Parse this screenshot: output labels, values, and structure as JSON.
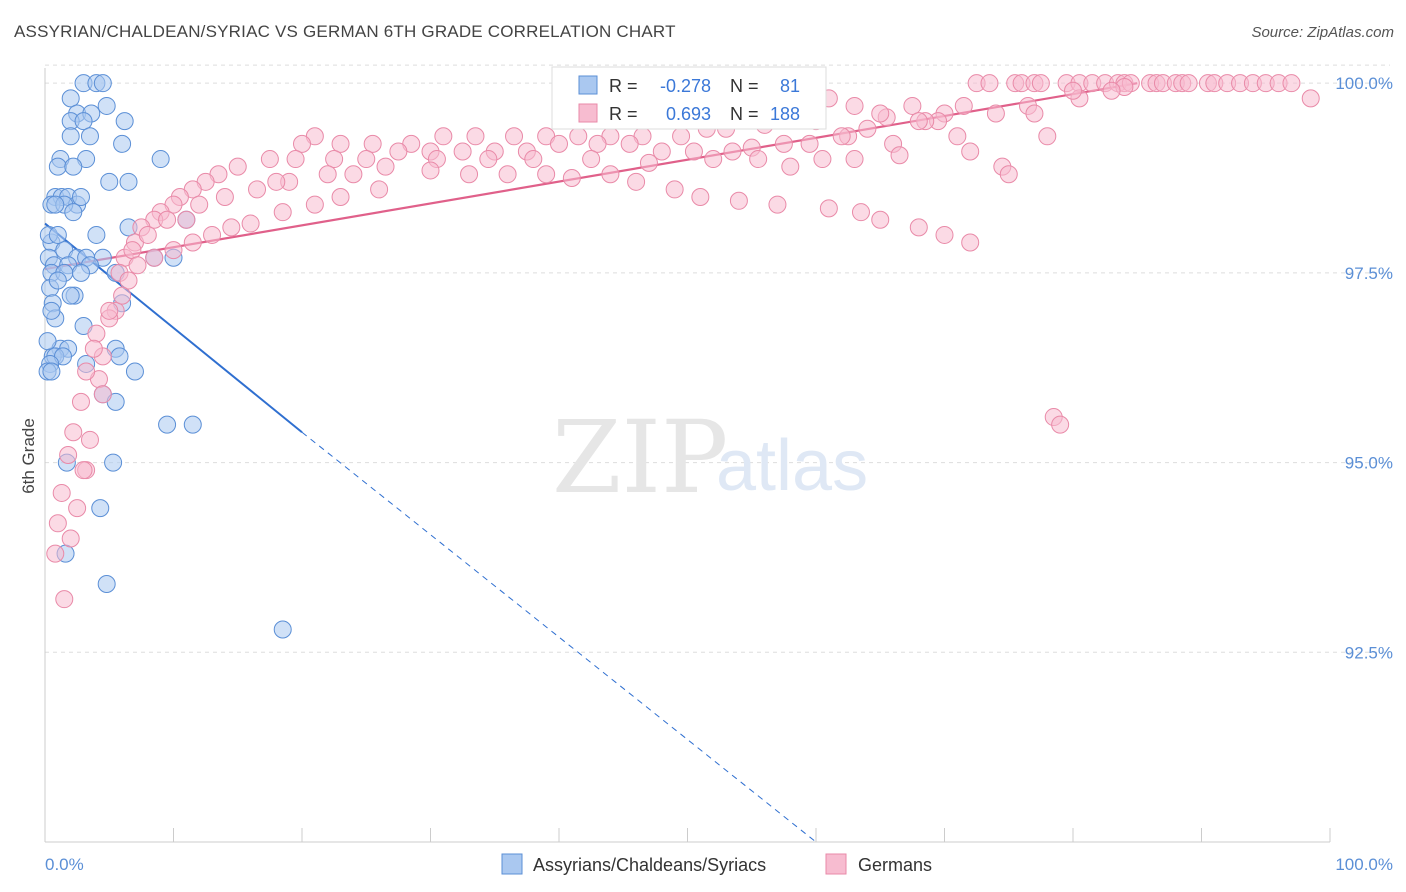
{
  "title": "ASSYRIAN/CHALDEAN/SYRIAC VS GERMAN 6TH GRADE CORRELATION CHART",
  "source": "Source: ZipAtlas.com",
  "watermark": {
    "zip": "ZIP",
    "atlas": "atlas"
  },
  "colors": {
    "blue_fill": "#aac8f0",
    "blue_stroke": "#5b8fd6",
    "blue_line": "#2f6fd0",
    "pink_fill": "#f7bcd0",
    "pink_stroke": "#e98aa8",
    "pink_line": "#e0608a",
    "grid": "#dddddd",
    "tick_text": "#5b8fd6"
  },
  "stats": {
    "r_label": "R =",
    "n_label": "N =",
    "blue": {
      "r": "-0.278",
      "n": "81"
    },
    "pink": {
      "r": "0.693",
      "n": "188"
    }
  },
  "chart_data": {
    "type": "scatter",
    "title": "ASSYRIAN/CHALDEAN/SYRIAC VS GERMAN 6TH GRADE CORRELATION CHART",
    "xlabel": "",
    "ylabel": "6th Grade",
    "xlim": [
      0,
      100
    ],
    "ylim": [
      90.0,
      100.2
    ],
    "x_tick_labels": [
      "0.0%",
      "100.0%"
    ],
    "y_ticks": [
      92.5,
      95.0,
      97.5,
      100.0
    ],
    "y_tick_labels": [
      "92.5%",
      "95.0%",
      "97.5%",
      "100.0%"
    ],
    "grid": true,
    "legend_position": "bottom-center",
    "series": [
      {
        "name": "Assyrians/Chaldeans/Syriacs",
        "color": "#aac8f0",
        "trend": {
          "x": [
            0,
            20
          ],
          "y": [
            98.15,
            95.4
          ],
          "dashed_to": [
            60,
            90.0
          ]
        },
        "points": [
          [
            3,
            100
          ],
          [
            4,
            100
          ],
          [
            4.5,
            100
          ],
          [
            2,
            99.8
          ],
          [
            4.8,
            99.7
          ],
          [
            2.5,
            99.6
          ],
          [
            3.6,
            99.6
          ],
          [
            2,
            99.5
          ],
          [
            3,
            99.5
          ],
          [
            6.2,
            99.5
          ],
          [
            2,
            99.3
          ],
          [
            3.5,
            99.3
          ],
          [
            6,
            99.2
          ],
          [
            1.2,
            99.0
          ],
          [
            3.2,
            99.0
          ],
          [
            9,
            99.0
          ],
          [
            1,
            98.9
          ],
          [
            2.2,
            98.9
          ],
          [
            5,
            98.7
          ],
          [
            6.5,
            98.7
          ],
          [
            0.8,
            98.5
          ],
          [
            1.3,
            98.5
          ],
          [
            1.8,
            98.5
          ],
          [
            2.5,
            98.4
          ],
          [
            0.5,
            98.4
          ],
          [
            1.5,
            98.4
          ],
          [
            2.2,
            98.3
          ],
          [
            0.8,
            98.4
          ],
          [
            11,
            98.2
          ],
          [
            4,
            98.0
          ],
          [
            6.5,
            98.1
          ],
          [
            0.5,
            97.9
          ],
          [
            1.5,
            97.8
          ],
          [
            2.5,
            97.7
          ],
          [
            3.2,
            97.7
          ],
          [
            4.5,
            97.7
          ],
          [
            8.5,
            97.7
          ],
          [
            10,
            97.7
          ],
          [
            0.3,
            97.7
          ],
          [
            0.7,
            97.6
          ],
          [
            1.8,
            97.6
          ],
          [
            3.5,
            97.6
          ],
          [
            0.5,
            97.5
          ],
          [
            1.5,
            97.5
          ],
          [
            2.8,
            97.5
          ],
          [
            5.5,
            97.5
          ],
          [
            0.4,
            97.3
          ],
          [
            2.3,
            97.2
          ],
          [
            0.6,
            97.1
          ],
          [
            2,
            97.2
          ],
          [
            6,
            97.1
          ],
          [
            0.8,
            96.9
          ],
          [
            3,
            96.8
          ],
          [
            1.2,
            96.5
          ],
          [
            1.8,
            96.5
          ],
          [
            5.5,
            96.5
          ],
          [
            0.6,
            96.4
          ],
          [
            0.8,
            96.4
          ],
          [
            5.8,
            96.4
          ],
          [
            1.4,
            96.4
          ],
          [
            0.4,
            96.3
          ],
          [
            0.2,
            96.2
          ],
          [
            3.2,
            96.3
          ],
          [
            7,
            96.2
          ],
          [
            0.5,
            96.2
          ],
          [
            4.5,
            95.9
          ],
          [
            5.5,
            95.8
          ],
          [
            9.5,
            95.5
          ],
          [
            11.5,
            95.5
          ],
          [
            1.7,
            95.0
          ],
          [
            5.3,
            95.0
          ],
          [
            4.3,
            94.4
          ],
          [
            1.6,
            93.8
          ],
          [
            4.8,
            93.4
          ],
          [
            18.5,
            92.8
          ],
          [
            0.2,
            96.6
          ],
          [
            0.5,
            97.0
          ],
          [
            1.0,
            97.4
          ],
          [
            0.3,
            98.0
          ],
          [
            2.8,
            98.5
          ],
          [
            1.0,
            98.0
          ]
        ]
      },
      {
        "name": "Germans",
        "color": "#f7bcd0",
        "trend": {
          "x": [
            0,
            85
          ],
          "y": [
            97.55,
            100.0
          ]
        },
        "points": [
          [
            72.5,
            100
          ],
          [
            73.5,
            100
          ],
          [
            75.5,
            100
          ],
          [
            76,
            100
          ],
          [
            77,
            100
          ],
          [
            77.5,
            100
          ],
          [
            79.5,
            100
          ],
          [
            80.5,
            100
          ],
          [
            81.5,
            100
          ],
          [
            82.5,
            100
          ],
          [
            83.5,
            100
          ],
          [
            84,
            100
          ],
          [
            84.5,
            100
          ],
          [
            86,
            100
          ],
          [
            86.5,
            100
          ],
          [
            87,
            100
          ],
          [
            88,
            100
          ],
          [
            88.5,
            100
          ],
          [
            89,
            100
          ],
          [
            90.5,
            100
          ],
          [
            91,
            100
          ],
          [
            92,
            100
          ],
          [
            93,
            100
          ],
          [
            94,
            100
          ],
          [
            95,
            100
          ],
          [
            96,
            100
          ],
          [
            97,
            100
          ],
          [
            84,
            99.95
          ],
          [
            83,
            99.9
          ],
          [
            80.5,
            99.8
          ],
          [
            98.5,
            99.8
          ],
          [
            76.5,
            99.7
          ],
          [
            67.5,
            99.7
          ],
          [
            70,
            99.6
          ],
          [
            71.5,
            99.7
          ],
          [
            74,
            99.6
          ],
          [
            77,
            99.6
          ],
          [
            69.5,
            99.5
          ],
          [
            65.5,
            99.55
          ],
          [
            68.5,
            99.5
          ],
          [
            60,
            99.5
          ],
          [
            56,
            99.45
          ],
          [
            53,
            99.4
          ],
          [
            51.5,
            99.4
          ],
          [
            49.5,
            99.3
          ],
          [
            46.5,
            99.3
          ],
          [
            44,
            99.3
          ],
          [
            41.5,
            99.3
          ],
          [
            39,
            99.3
          ],
          [
            36.5,
            99.3
          ],
          [
            33.5,
            99.3
          ],
          [
            31,
            99.3
          ],
          [
            28.5,
            99.2
          ],
          [
            25.5,
            99.2
          ],
          [
            23,
            99.2
          ],
          [
            21,
            99.3
          ],
          [
            20,
            99.2
          ],
          [
            64,
            99.4
          ],
          [
            62.5,
            99.3
          ],
          [
            59.5,
            99.2
          ],
          [
            57.5,
            99.2
          ],
          [
            55,
            99.15
          ],
          [
            53.5,
            99.1
          ],
          [
            50.5,
            99.1
          ],
          [
            48,
            99.1
          ],
          [
            45.5,
            99.2
          ],
          [
            43,
            99.2
          ],
          [
            40,
            99.2
          ],
          [
            37.5,
            99.1
          ],
          [
            35,
            99.1
          ],
          [
            32.5,
            99.1
          ],
          [
            30,
            99.1
          ],
          [
            27.5,
            99.1
          ],
          [
            25,
            99.0
          ],
          [
            22.5,
            99.0
          ],
          [
            19.5,
            99.0
          ],
          [
            17.5,
            99.0
          ],
          [
            15,
            98.9
          ],
          [
            13.5,
            98.8
          ],
          [
            12.5,
            98.7
          ],
          [
            11.5,
            98.6
          ],
          [
            10.5,
            98.5
          ],
          [
            10,
            98.4
          ],
          [
            9,
            98.3
          ],
          [
            8.5,
            98.2
          ],
          [
            7.5,
            98.1
          ],
          [
            7,
            97.9
          ],
          [
            6.2,
            97.7
          ],
          [
            5.8,
            97.5
          ],
          [
            5.5,
            97.0
          ],
          [
            5,
            96.9
          ],
          [
            4.5,
            96.4
          ],
          [
            4.2,
            96.1
          ],
          [
            4.5,
            95.9
          ],
          [
            3.5,
            95.3
          ],
          [
            3.2,
            94.9
          ],
          [
            3,
            94.9
          ],
          [
            2.5,
            94.4
          ],
          [
            2,
            94.0
          ],
          [
            1.5,
            93.2
          ],
          [
            78,
            99.3
          ],
          [
            80,
            99.9
          ],
          [
            72,
            99.1
          ],
          [
            74.5,
            98.9
          ],
          [
            75,
            98.8
          ],
          [
            62,
            99.3
          ],
          [
            63,
            99.0
          ],
          [
            60.5,
            99.0
          ],
          [
            66,
            99.2
          ],
          [
            66.5,
            99.05
          ],
          [
            58,
            98.9
          ],
          [
            55.5,
            99.0
          ],
          [
            52,
            99.0
          ],
          [
            47,
            98.95
          ],
          [
            42.5,
            99.0
          ],
          [
            38,
            99.0
          ],
          [
            34.5,
            99.0
          ],
          [
            30.5,
            99.0
          ],
          [
            26.5,
            98.9
          ],
          [
            24,
            98.8
          ],
          [
            22,
            98.8
          ],
          [
            19,
            98.7
          ],
          [
            18,
            98.7
          ],
          [
            16.5,
            98.6
          ],
          [
            14,
            98.5
          ],
          [
            12,
            98.4
          ],
          [
            11,
            98.2
          ],
          [
            9.5,
            98.2
          ],
          [
            8,
            98.0
          ],
          [
            6.8,
            97.8
          ],
          [
            30,
            98.85
          ],
          [
            33,
            98.8
          ],
          [
            36,
            98.8
          ],
          [
            39,
            98.8
          ],
          [
            41,
            98.75
          ],
          [
            44,
            98.8
          ],
          [
            46,
            98.7
          ],
          [
            49,
            98.6
          ],
          [
            51,
            98.5
          ],
          [
            54,
            98.45
          ],
          [
            57,
            98.4
          ],
          [
            61,
            98.35
          ],
          [
            63.5,
            98.3
          ],
          [
            65,
            98.2
          ],
          [
            68,
            98.1
          ],
          [
            70,
            98.0
          ],
          [
            72,
            97.9
          ],
          [
            26,
            98.6
          ],
          [
            23,
            98.5
          ],
          [
            21,
            98.4
          ],
          [
            18.5,
            98.3
          ],
          [
            16,
            98.15
          ],
          [
            14.5,
            98.1
          ],
          [
            13,
            98.0
          ],
          [
            11.5,
            97.9
          ],
          [
            10,
            97.8
          ],
          [
            8.5,
            97.7
          ],
          [
            7.2,
            97.6
          ],
          [
            6.5,
            97.4
          ],
          [
            6,
            97.2
          ],
          [
            5,
            97.0
          ],
          [
            4,
            96.7
          ],
          [
            3.8,
            96.5
          ],
          [
            3.2,
            96.2
          ],
          [
            2.8,
            95.8
          ],
          [
            2.2,
            95.4
          ],
          [
            1.8,
            95.1
          ],
          [
            1.3,
            94.6
          ],
          [
            1.0,
            94.2
          ],
          [
            0.8,
            93.8
          ],
          [
            78.5,
            95.6
          ],
          [
            79,
            95.5
          ],
          [
            71,
            99.3
          ],
          [
            68,
            99.5
          ],
          [
            65,
            99.6
          ],
          [
            63,
            99.7
          ],
          [
            61,
            99.8
          ],
          [
            59,
            99.9
          ]
        ]
      }
    ]
  },
  "legend": [
    {
      "label": "Assyrians/Chaldeans/Syriacs"
    },
    {
      "label": "Germans"
    }
  ]
}
